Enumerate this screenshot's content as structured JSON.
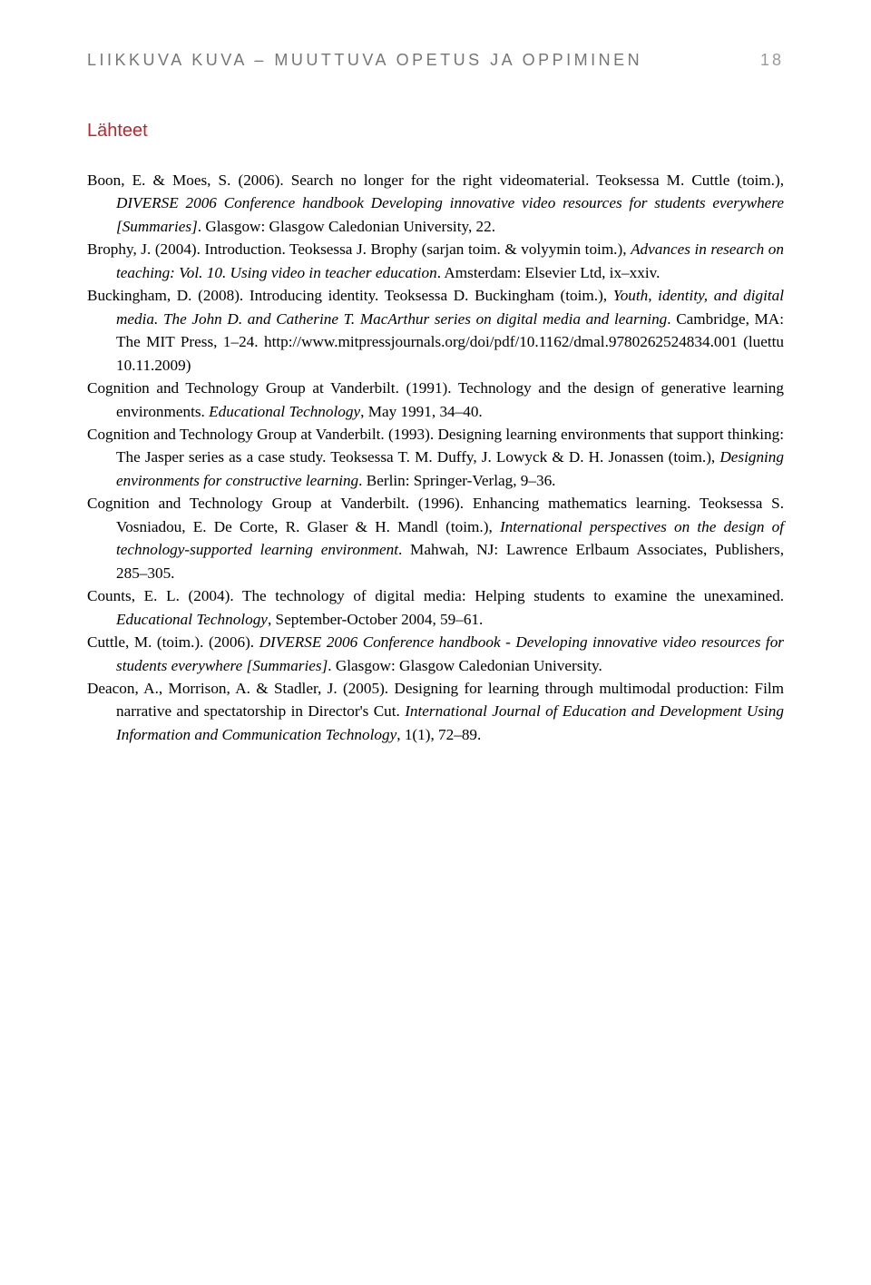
{
  "header": {
    "title": "LIIKKUVA KUVA – MUUTTUVA OPETUS JA OPPIMINEN",
    "page_number": "18"
  },
  "section_title": "Lähteet",
  "references": [
    {
      "html": "Boon, E. & Moes, S. (2006). Search no longer for the right videomaterial. Teoksessa M. Cuttle (toim.), <span class=\"italic\">DIVERSE 2006 Conference handbook Developing innovative video resources for students everywhere [Summaries]</span>. Glasgow: Glasgow Caledonian University, 22."
    },
    {
      "html": "Brophy, J. (2004). Introduction. Teoksessa J. Brophy (sarjan toim. & volyymin toim.), <span class=\"italic\">Advances in research on teaching: Vol. 10. Using video in teacher education</span>. Amsterdam: Elsevier Ltd, ix–xxiv."
    },
    {
      "html": "Buckingham, D. (2008). Introducing identity. Teoksessa D. Buckingham (toim.), <span class=\"italic\">Youth, identity, and digital media. The John D. and Catherine T. MacArthur series on digital media and learning</span>. Cambridge, MA: The MIT Press, 1–24. http://www.mitpressjournals.org/doi/pdf/10.1162/dmal.9780262524834.001 (luettu 10.11.2009)"
    },
    {
      "html": "Cognition and Technology Group at Vanderbilt. (1991). Technology and the design of generative learning environments. <span class=\"italic\">Educational Technology</span>, May 1991, 34–40."
    },
    {
      "html": "Cognition and Technology Group at Vanderbilt. (1993). Designing learning environments that support thinking: The Jasper series as a case study. Teoksessa T. M. Duffy, J. Lowyck & D. H. Jonassen (toim.), <span class=\"italic\">Designing environments for constructive learning</span>. Berlin: Springer-Verlag, 9–36."
    },
    {
      "html": "Cognition and Technology Group at Vanderbilt. (1996). Enhancing mathematics learning. Teoksessa S. Vosniadou, E. De Corte, R. Glaser & H. Mandl (toim.), <span class=\"italic\">International perspectives on the design of technology-supported learning environment</span>. Mahwah, NJ: Lawrence Erlbaum Associates, Publishers, 285–305."
    },
    {
      "html": "Counts, E. L. (2004). The technology of digital media: Helping students to examine the unexamined. <span class=\"italic\">Educational Technology</span>, September-October 2004, 59–61."
    },
    {
      "html": "Cuttle, M. (toim.). (2006). <span class=\"italic\">DIVERSE 2006 Conference handbook - Developing innovative video resources for students everywhere [Summaries]</span>. Glasgow: Glasgow Caledonian University."
    },
    {
      "html": "Deacon, A., Morrison, A. & Stadler, J. (2005). Designing for learning through multimodal production: Film narrative and spectatorship in Director's Cut. <span class=\"italic\">International Journal of Education and Development Using Information and Communication Technology</span>, 1(1), 72–89."
    }
  ]
}
